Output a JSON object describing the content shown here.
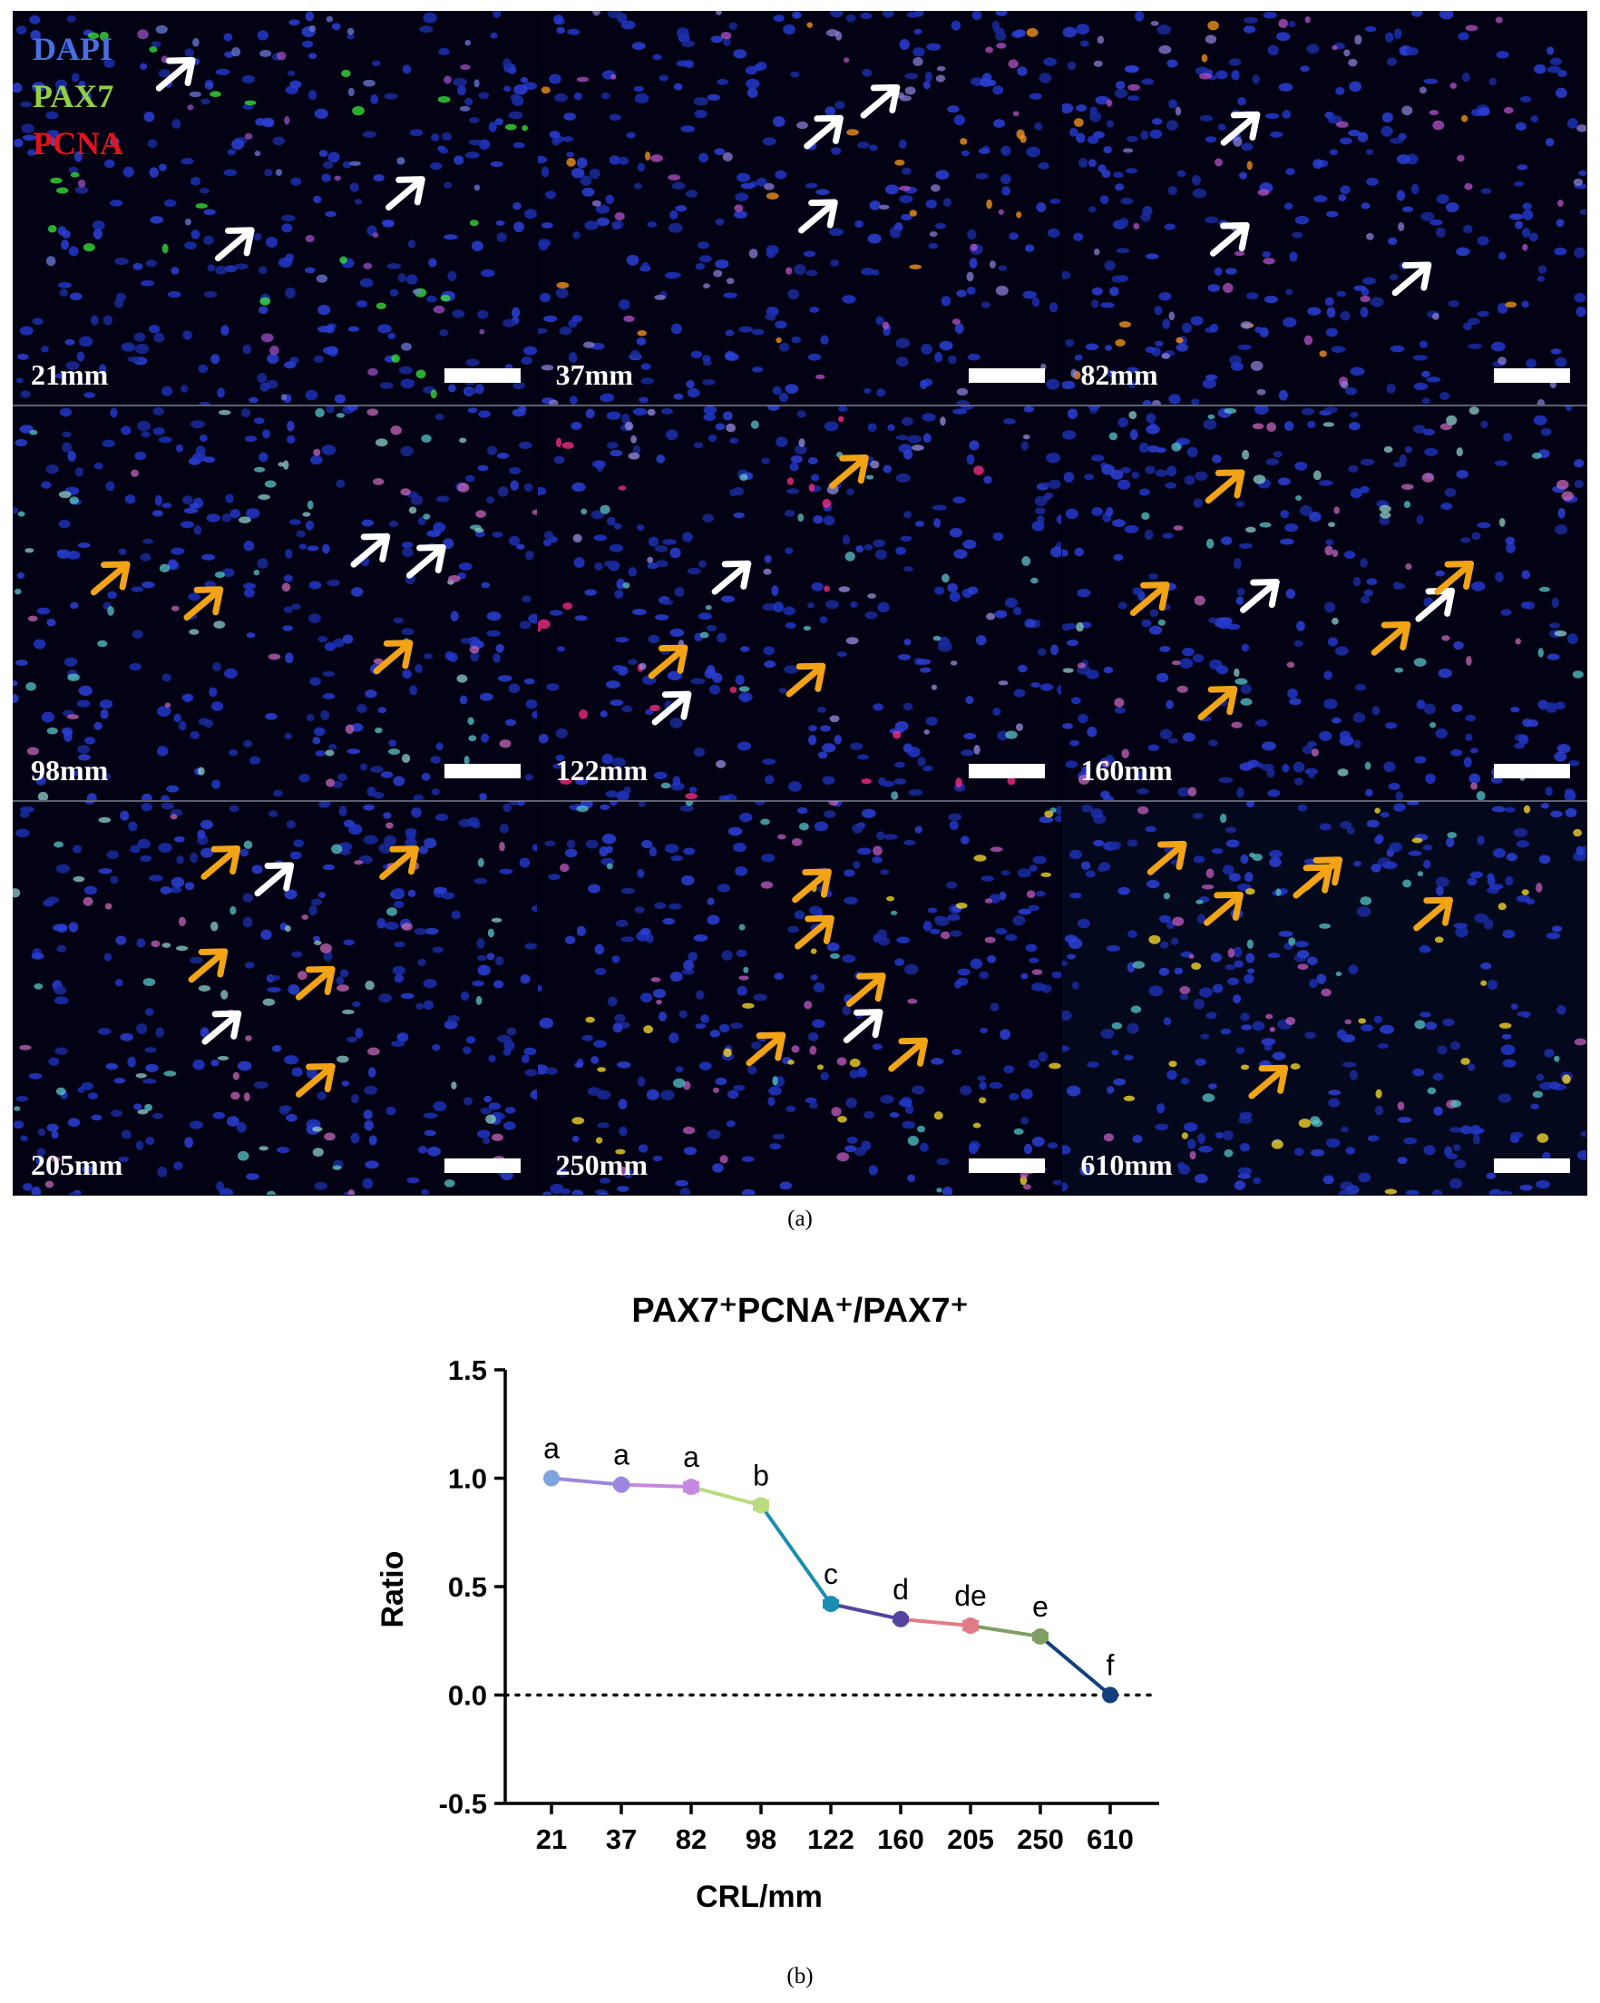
{
  "figure_a": {
    "legend": [
      {
        "label": "DAPI",
        "color": "#4a6fe0"
      },
      {
        "label": "PAX7",
        "color": "#8fd13f"
      },
      {
        "label": "PCNA",
        "color": "#e0141e"
      }
    ],
    "panels": [
      {
        "label": "21mm",
        "white_arrows": 3,
        "orange_arrows": 0,
        "tint": "green"
      },
      {
        "label": "37mm",
        "white_arrows": 3,
        "orange_arrows": 0,
        "tint": "orange"
      },
      {
        "label": "82mm",
        "white_arrows": 3,
        "orange_arrows": 0,
        "tint": "orange"
      },
      {
        "label": "98mm",
        "white_arrows": 2,
        "orange_arrows": 3,
        "tint": "cyan"
      },
      {
        "label": "122mm",
        "white_arrows": 2,
        "orange_arrows": 3,
        "tint": "pink"
      },
      {
        "label": "160mm",
        "white_arrows": 2,
        "orange_arrows": 5,
        "tint": "cyan"
      },
      {
        "label": "205mm",
        "white_arrows": 2,
        "orange_arrows": 5,
        "tint": "cyan"
      },
      {
        "label": "250mm",
        "white_arrows": 1,
        "orange_arrows": 5,
        "tint": "yellow"
      },
      {
        "label": "610mm",
        "white_arrows": 0,
        "orange_arrows": 6,
        "tint": "yellow"
      }
    ],
    "caption": "(a)"
  },
  "chart_data": {
    "type": "line",
    "title": "PAX7⁺PCNA⁺/PAX7⁺",
    "xlabel": "CRL/mm",
    "ylabel": "Ratio",
    "categories": [
      "21",
      "37",
      "82",
      "98",
      "122",
      "160",
      "205",
      "250",
      "610"
    ],
    "values": [
      1.0,
      0.97,
      0.96,
      0.875,
      0.42,
      0.35,
      0.32,
      0.27,
      0.0
    ],
    "errors": [
      0.0,
      0.01,
      0.02,
      0.02,
      0.015,
      0.01,
      0.02,
      0.015,
      0.0
    ],
    "significance": [
      "a",
      "a",
      "a",
      "b",
      "c",
      "d",
      "de",
      "e",
      "f"
    ],
    "point_colors": [
      "#7fa3df",
      "#9b86e0",
      "#c687e0",
      "#b9dc7e",
      "#1b8db0",
      "#55449d",
      "#e07c86",
      "#7f9e64",
      "#133f7c"
    ],
    "ylim": [
      -0.5,
      1.5
    ],
    "yticks": [
      "1.5",
      "1.0",
      "0.5",
      "0.0",
      "-0.5"
    ],
    "reference_line": 0.0,
    "grid": false,
    "caption": "(b)"
  }
}
